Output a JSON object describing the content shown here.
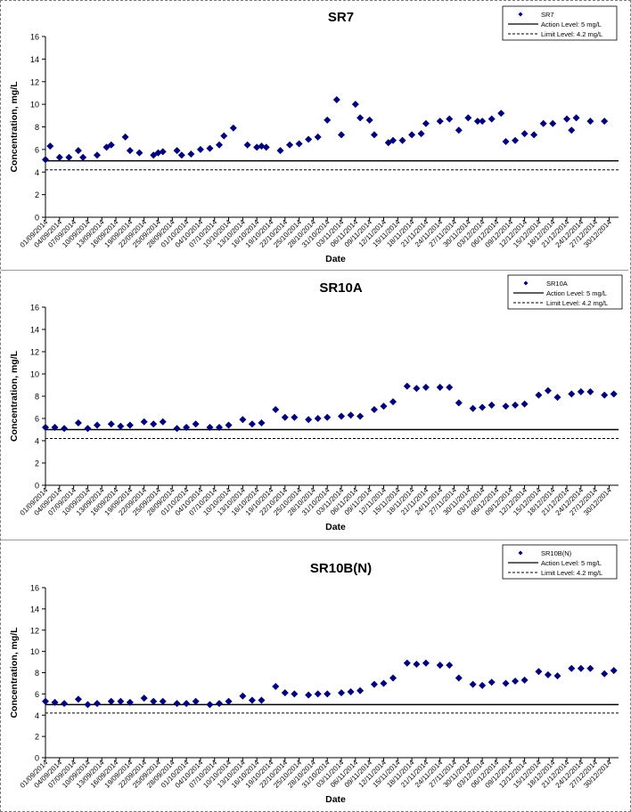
{
  "chart_data": [
    {
      "type": "scatter",
      "title": "SR7",
      "xlabel": "Date",
      "ylabel": "Concentration, mg/L",
      "ylim": [
        0,
        16
      ],
      "yticks": [
        "0",
        "2",
        "4",
        "6",
        "8",
        "10",
        "12",
        "14",
        "16"
      ],
      "grid": false,
      "legend_position": "top-right",
      "colors": {
        "marker": "#00007a",
        "line": "#000000"
      },
      "x_ticks": [
        "01/09/2014",
        "04/09/2014",
        "07/09/2014",
        "10/09/2014",
        "13/09/2014",
        "16/09/2014",
        "19/09/2014",
        "22/09/2014",
        "25/09/2014",
        "28/09/2014",
        "01/10/2014",
        "04/10/2014",
        "07/10/2014",
        "10/10/2014",
        "13/10/2014",
        "16/10/2014",
        "19/10/2014",
        "22/10/2014",
        "25/10/2014",
        "28/10/2014",
        "31/10/2014",
        "03/11/2014",
        "06/11/2014",
        "09/11/2014",
        "12/11/2014",
        "15/11/2014",
        "18/11/2014",
        "21/11/2014",
        "24/11/2014",
        "27/11/2014",
        "30/11/2014",
        "03/12/2014",
        "06/12/2014",
        "09/12/2014",
        "12/12/2014",
        "15/12/2014",
        "18/12/2014",
        "21/12/2014",
        "24/12/2014",
        "27/12/2014",
        "30/12/2014"
      ],
      "series": [
        {
          "name": "SR7",
          "x": [
            "01/09/2014",
            "02/09/2014",
            "04/09/2014",
            "06/09/2014",
            "08/09/2014",
            "09/09/2014",
            "12/09/2014",
            "14/09/2014",
            "15/09/2014",
            "18/09/2014",
            "19/09/2014",
            "21/09/2014",
            "24/09/2014",
            "25/09/2014",
            "26/09/2014",
            "29/09/2014",
            "30/09/2014",
            "02/10/2014",
            "04/10/2014",
            "06/10/2014",
            "08/10/2014",
            "09/10/2014",
            "11/10/2014",
            "14/10/2014",
            "16/10/2014",
            "17/10/2014",
            "18/10/2014",
            "21/10/2014",
            "23/10/2014",
            "25/10/2014",
            "27/10/2014",
            "29/10/2014",
            "31/10/2014",
            "02/11/2014",
            "03/11/2014",
            "06/11/2014",
            "07/11/2014",
            "09/11/2014",
            "10/11/2014",
            "13/11/2014",
            "14/11/2014",
            "16/11/2014",
            "18/11/2014",
            "20/11/2014",
            "21/11/2014",
            "24/11/2014",
            "26/11/2014",
            "28/11/2014",
            "30/11/2014",
            "02/12/2014",
            "03/12/2014",
            "05/12/2014",
            "07/12/2014",
            "08/12/2014",
            "10/12/2014",
            "12/12/2014",
            "14/12/2014",
            "16/12/2014",
            "18/12/2014",
            "21/12/2014",
            "22/12/2014",
            "23/12/2014",
            "26/12/2014",
            "29/12/2014"
          ],
          "y": [
            5.1,
            6.3,
            5.3,
            5.3,
            5.9,
            5.3,
            5.5,
            6.2,
            6.4,
            7.1,
            5.9,
            5.7,
            5.5,
            5.7,
            5.8,
            5.9,
            5.5,
            5.6,
            6.0,
            6.1,
            6.4,
            7.2,
            7.9,
            6.4,
            6.2,
            6.3,
            6.2,
            5.9,
            6.4,
            6.5,
            6.9,
            7.1,
            8.6,
            10.4,
            7.3,
            10.0,
            8.8,
            8.6,
            7.3,
            6.6,
            6.8,
            6.8,
            7.3,
            7.4,
            8.3,
            8.5,
            8.7,
            7.7,
            8.8,
            8.5,
            8.5,
            8.7,
            9.2,
            6.7,
            6.8,
            7.4,
            7.3,
            8.3,
            8.3,
            8.7,
            7.7,
            8.8,
            8.5,
            8.5
          ]
        },
        {
          "name": "Action Level: 5 mg/L",
          "value": 5,
          "style": "solid"
        },
        {
          "name": "Limit Level: 4.2 mg/L",
          "value": 4.2,
          "style": "dashed"
        }
      ]
    },
    {
      "type": "scatter",
      "title": "SR10A",
      "xlabel": "Date",
      "ylabel": "Concentration, mg/L",
      "ylim": [
        0,
        16
      ],
      "yticks": [
        "0",
        "2",
        "4",
        "6",
        "8",
        "10",
        "12",
        "14",
        "16"
      ],
      "grid": false,
      "legend_position": "top-right",
      "colors": {
        "marker": "#00007a",
        "line": "#000000"
      },
      "x_ticks": [
        "01/09/2014",
        "04/09/2014",
        "07/09/2014",
        "10/09/2014",
        "13/09/2014",
        "16/09/2014",
        "19/09/2014",
        "22/09/2014",
        "25/09/2014",
        "28/09/2014",
        "01/10/2014",
        "04/10/2014",
        "07/10/2014",
        "10/10/2014",
        "13/10/2014",
        "16/10/2014",
        "19/10/2014",
        "22/10/2014",
        "25/10/2014",
        "28/10/2014",
        "31/10/2014",
        "03/11/2014",
        "06/11/2014",
        "09/11/2014",
        "12/11/2014",
        "15/11/2014",
        "18/11/2014",
        "21/11/2014",
        "24/11/2014",
        "27/11/2014",
        "30/11/2014",
        "03/12/2014",
        "06/12/2014",
        "09/12/2014",
        "12/12/2014",
        "15/12/2014",
        "18/12/2014",
        "21/12/2014",
        "24/12/2014",
        "27/12/2014",
        "30/12/2014"
      ],
      "series": [
        {
          "name": "SR10A",
          "x": [
            "01/09/2014",
            "03/09/2014",
            "05/09/2014",
            "08/09/2014",
            "10/09/2014",
            "12/09/2014",
            "15/09/2014",
            "17/09/2014",
            "19/09/2014",
            "22/09/2014",
            "24/09/2014",
            "26/09/2014",
            "29/09/2014",
            "01/10/2014",
            "03/10/2014",
            "06/10/2014",
            "08/10/2014",
            "10/10/2014",
            "13/10/2014",
            "15/10/2014",
            "17/10/2014",
            "20/10/2014",
            "22/10/2014",
            "24/10/2014",
            "27/10/2014",
            "29/10/2014",
            "31/10/2014",
            "03/11/2014",
            "05/11/2014",
            "07/11/2014",
            "10/11/2014",
            "12/11/2014",
            "14/11/2014",
            "17/11/2014",
            "19/11/2014",
            "21/11/2014",
            "24/11/2014",
            "26/11/2014",
            "28/11/2014",
            "01/12/2014",
            "03/12/2014",
            "05/12/2014",
            "08/12/2014",
            "10/12/2014",
            "12/12/2014",
            "15/12/2014",
            "17/12/2014",
            "19/12/2014",
            "22/12/2014",
            "24/12/2014",
            "26/12/2014",
            "29/12/2014",
            "31/12/2014"
          ],
          "y": [
            5.2,
            5.2,
            5.1,
            5.6,
            5.1,
            5.4,
            5.5,
            5.3,
            5.4,
            5.7,
            5.5,
            5.7,
            5.1,
            5.2,
            5.5,
            5.2,
            5.2,
            5.4,
            5.9,
            5.5,
            5.6,
            6.8,
            6.1,
            6.1,
            5.9,
            6.0,
            6.1,
            6.2,
            6.3,
            6.2,
            6.8,
            7.1,
            7.5,
            8.9,
            8.7,
            8.8,
            8.8,
            8.8,
            7.4,
            6.9,
            7.0,
            7.2,
            7.1,
            7.2,
            7.3,
            8.1,
            8.5,
            7.9,
            8.2,
            8.4,
            8.4,
            8.1,
            8.2
          ]
        },
        {
          "name": "Action Level: 5 mg/L",
          "value": 5,
          "style": "solid"
        },
        {
          "name": "Limit Level: 4.2 mg/L",
          "value": 4.2,
          "style": "dashed"
        }
      ]
    },
    {
      "type": "scatter",
      "title": "SR10B(N)",
      "xlabel": "Date",
      "ylabel": "Concentration, mg/L",
      "ylim": [
        0,
        16
      ],
      "yticks": [
        "0",
        "2",
        "4",
        "6",
        "8",
        "10",
        "12",
        "14",
        "16"
      ],
      "grid": false,
      "legend_position": "top-right",
      "colors": {
        "marker": "#00007a",
        "line": "#000000"
      },
      "x_ticks": [
        "01/09/2014",
        "04/09/2014",
        "07/09/2014",
        "10/09/2014",
        "13/09/2014",
        "16/09/2014",
        "19/09/2014",
        "22/09/2014",
        "25/09/2014",
        "28/09/2014",
        "01/10/2014",
        "04/10/2014",
        "07/10/2014",
        "10/10/2014",
        "13/10/2014",
        "16/10/2014",
        "19/10/2014",
        "22/10/2014",
        "25/10/2014",
        "28/10/2014",
        "31/10/2014",
        "03/11/2014",
        "06/11/2014",
        "09/11/2014",
        "12/11/2014",
        "15/11/2014",
        "18/11/2014",
        "21/11/2014",
        "24/11/2014",
        "27/11/2014",
        "30/11/2014",
        "03/12/2014",
        "06/12/2014",
        "09/12/2014",
        "12/12/2014",
        "15/12/2014",
        "18/12/2014",
        "21/12/2014",
        "24/12/2014",
        "27/12/2014",
        "30/12/2014"
      ],
      "series": [
        {
          "name": "SR10B(N)",
          "x": [
            "01/09/2014",
            "03/09/2014",
            "05/09/2014",
            "08/09/2014",
            "10/09/2014",
            "12/09/2014",
            "15/09/2014",
            "17/09/2014",
            "19/09/2014",
            "22/09/2014",
            "24/09/2014",
            "26/09/2014",
            "29/09/2014",
            "01/10/2014",
            "03/10/2014",
            "06/10/2014",
            "08/10/2014",
            "10/10/2014",
            "13/10/2014",
            "15/10/2014",
            "17/10/2014",
            "20/10/2014",
            "22/10/2014",
            "24/10/2014",
            "27/10/2014",
            "29/10/2014",
            "31/10/2014",
            "03/11/2014",
            "05/11/2014",
            "07/11/2014",
            "10/11/2014",
            "12/11/2014",
            "14/11/2014",
            "17/11/2014",
            "19/11/2014",
            "21/11/2014",
            "24/11/2014",
            "26/11/2014",
            "28/11/2014",
            "01/12/2014",
            "03/12/2014",
            "05/12/2014",
            "08/12/2014",
            "10/12/2014",
            "12/12/2014",
            "15/12/2014",
            "17/12/2014",
            "19/12/2014",
            "22/12/2014",
            "24/12/2014",
            "26/12/2014",
            "29/12/2014",
            "31/12/2014"
          ],
          "y": [
            5.3,
            5.2,
            5.1,
            5.5,
            5.0,
            5.1,
            5.3,
            5.3,
            5.2,
            5.6,
            5.3,
            5.3,
            5.1,
            5.1,
            5.3,
            5.0,
            5.1,
            5.3,
            5.8,
            5.4,
            5.4,
            6.7,
            6.1,
            6.0,
            5.9,
            6.0,
            6.0,
            6.1,
            6.2,
            6.3,
            6.9,
            7.0,
            7.5,
            8.9,
            8.8,
            8.9,
            8.7,
            8.7,
            7.5,
            6.9,
            6.8,
            7.1,
            7.0,
            7.2,
            7.3,
            8.1,
            7.8,
            7.7,
            8.4,
            8.4,
            8.4,
            7.9,
            8.2
          ]
        },
        {
          "name": "Action Level: 5 mg/L",
          "value": 5,
          "style": "solid"
        },
        {
          "name": "Limit Level: 4.2 mg/L",
          "value": 4.2,
          "style": "dashed"
        }
      ]
    }
  ]
}
